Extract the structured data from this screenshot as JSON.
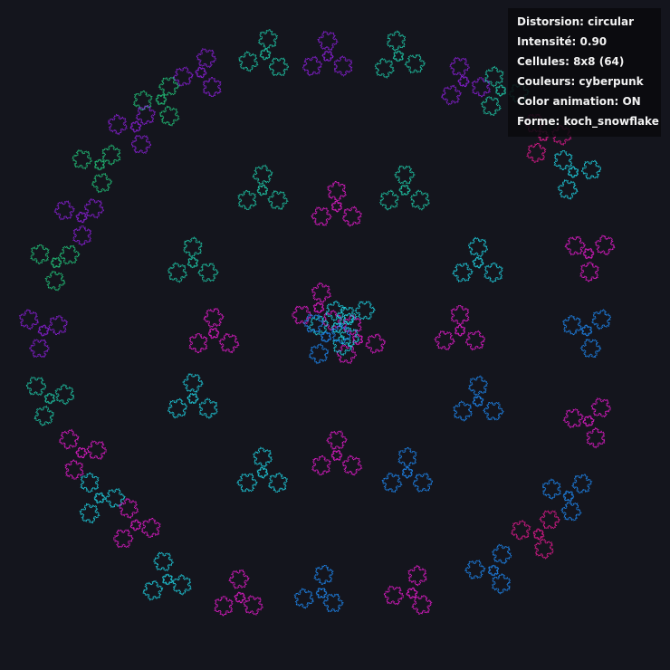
{
  "settings": {
    "distortion": "Distorsion: circular",
    "intensity": "Intensité: 0.90",
    "cells": "Cellules: 8x8 (64)",
    "colors": "Couleurs: cyberpunk",
    "animation": "Color animation: ON",
    "shape": "Forme: koch_snowflake"
  },
  "palette": {
    "background": "#14151d",
    "magenta": "#e01bc8",
    "violet": "#8a1fd6",
    "teal": "#1fc7a6",
    "cyan": "#1fd0e0",
    "blue": "#1e86ee",
    "green": "#22c47a",
    "pink": "#e01a8e"
  },
  "artwork": {
    "shape_icon": "koch-snowflake-icon",
    "grid": "8x8",
    "cell_count": 64
  }
}
